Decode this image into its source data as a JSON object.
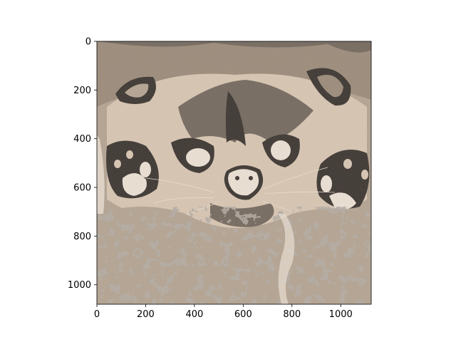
{
  "image": {
    "subject": "posterized-sepia-animal-face",
    "colors": {
      "lightest": "#ede2d6",
      "light": "#d9c7b4",
      "mid": "#b4a594",
      "midDark": "#9c8c7c",
      "dark": "#756a60",
      "darkest": "#3c3632"
    }
  },
  "axes": {
    "x_ticks": [
      0,
      200,
      400,
      600,
      800,
      1000
    ],
    "y_ticks": [
      0,
      200,
      400,
      600,
      800,
      1000
    ],
    "x_tick_labels": [
      "0",
      "200",
      "400",
      "600",
      "800",
      "1000"
    ],
    "y_tick_labels": [
      "0",
      "200",
      "400",
      "600",
      "800",
      "1000"
    ],
    "xlim": [
      0,
      1125
    ],
    "ylim": [
      1080,
      0
    ]
  }
}
